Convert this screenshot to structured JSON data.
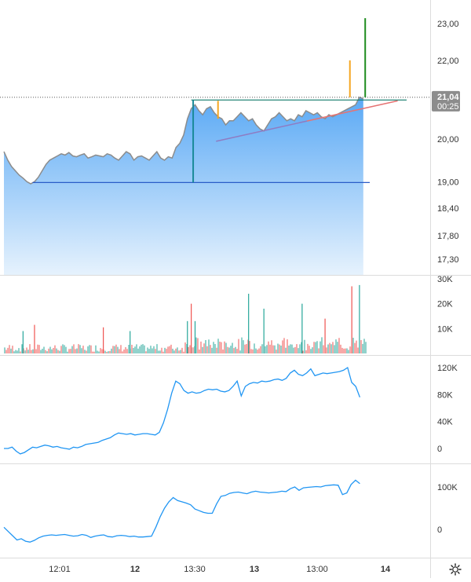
{
  "chart_data": [
    {
      "type": "area",
      "pane": "price",
      "y_ticks": [
        "23,00",
        "22,00",
        "21,00",
        "20,00",
        "19,00",
        "18,40",
        "17,80",
        "17,30"
      ],
      "y_tick_values": [
        23.0,
        22.0,
        21.0,
        20.0,
        19.0,
        18.4,
        17.8,
        17.3
      ],
      "y_scale": "log",
      "last_price_label": "21,04",
      "last_price": 21.04,
      "countdown_label": "00:25",
      "series": [
        {
          "x": [
            0,
            1,
            2,
            3,
            4,
            5,
            6,
            7,
            8,
            9,
            10,
            11,
            12,
            13,
            14,
            15,
            16,
            17,
            18,
            19,
            20,
            21,
            22,
            23,
            24,
            25,
            26,
            27,
            28,
            29,
            30,
            31,
            32,
            33,
            34,
            35,
            36,
            37,
            38,
            39,
            40,
            41,
            42,
            43,
            44,
            45,
            46,
            47,
            48,
            49,
            50,
            51,
            52,
            53,
            54,
            55,
            56,
            57,
            58,
            59,
            60,
            61,
            62,
            63,
            64,
            65,
            66,
            67,
            68,
            69,
            70,
            71,
            72,
            73,
            74,
            75,
            76,
            77,
            78,
            79,
            80,
            81,
            82,
            83,
            84,
            85,
            86,
            87,
            88,
            89,
            90,
            91,
            92,
            93,
            94
          ],
          "values": [
            19.7,
            19.5,
            19.35,
            19.25,
            19.15,
            19.08,
            19.0,
            18.95,
            19.0,
            19.1,
            19.25,
            19.4,
            19.5,
            19.55,
            19.6,
            19.65,
            19.62,
            19.68,
            19.6,
            19.58,
            19.62,
            19.65,
            19.55,
            19.58,
            19.62,
            19.6,
            19.58,
            19.65,
            19.62,
            19.55,
            19.5,
            19.6,
            19.7,
            19.65,
            19.5,
            19.58,
            19.6,
            19.55,
            19.5,
            19.6,
            19.7,
            19.55,
            19.5,
            19.58,
            19.55,
            19.8,
            19.9,
            20.1,
            20.5,
            20.75,
            20.85,
            20.7,
            20.6,
            20.75,
            20.8,
            20.65,
            20.55,
            20.5,
            20.35,
            20.45,
            20.45,
            20.55,
            20.65,
            20.55,
            20.45,
            20.5,
            20.35,
            20.25,
            20.2,
            20.35,
            20.5,
            20.55,
            20.65,
            20.55,
            20.45,
            20.5,
            20.45,
            20.6,
            20.55,
            20.7,
            20.65,
            20.6,
            20.65,
            20.55,
            20.5,
            20.6,
            20.55,
            20.6,
            20.65,
            20.7,
            20.75,
            20.8,
            20.85,
            21.04,
            21.0
          ]
        }
      ],
      "drawings": [
        {
          "kind": "horizontal-line",
          "level": 18.98,
          "color": "#2a5cc8"
        },
        {
          "kind": "horizontal-line",
          "level": 20.97,
          "color": "#0f7a6a"
        },
        {
          "kind": "trend-line",
          "from": [
            55.5,
            19.95
          ],
          "to": [
            103,
            20.95
          ],
          "colors": [
            "#8e7cc3",
            "#e57373"
          ]
        },
        {
          "kind": "vertical-segment",
          "x": 49.5,
          "from": 18.98,
          "to": 20.97,
          "color": "#1a8a99"
        },
        {
          "kind": "vertical-segment",
          "x": 56,
          "from": 20.5,
          "to": 20.95,
          "color": "#f5a623"
        },
        {
          "kind": "vertical-segment",
          "x": 90.5,
          "from": 21.04,
          "to": 22.0,
          "color": "#f5a623"
        },
        {
          "kind": "vertical-segment",
          "x": 94.5,
          "from": 21.04,
          "to": 23.15,
          "color": "#1e8c1e"
        }
      ]
    },
    {
      "type": "bar",
      "pane": "volume",
      "y_ticks": [
        "30K",
        "20K",
        "10K"
      ],
      "y_tick_values": [
        30000,
        20000,
        10000
      ],
      "spikes": [
        {
          "x": 5,
          "value": 9000,
          "color": "up"
        },
        {
          "x": 8,
          "value": 11500,
          "color": "down"
        },
        {
          "x": 26,
          "value": 10500,
          "color": "down"
        },
        {
          "x": 33,
          "value": 9000,
          "color": "up"
        },
        {
          "x": 48,
          "value": 13000,
          "color": "up"
        },
        {
          "x": 49,
          "value": 20000,
          "color": "down"
        },
        {
          "x": 50,
          "value": 13000,
          "color": "up"
        },
        {
          "x": 64,
          "value": 24000,
          "color": "up"
        },
        {
          "x": 68,
          "value": 18000,
          "color": "up"
        },
        {
          "x": 78,
          "value": 20000,
          "color": "up"
        },
        {
          "x": 84,
          "value": 14000,
          "color": "down"
        },
        {
          "x": 91,
          "value": 27000,
          "color": "down"
        },
        {
          "x": 93,
          "value": 27500,
          "color": "up"
        }
      ]
    },
    {
      "type": "line",
      "pane": "indicator-1",
      "y_ticks": [
        "120K",
        "80K",
        "40K",
        "0"
      ],
      "y_tick_values": [
        120000,
        80000,
        40000,
        0
      ],
      "color": "#2196f3",
      "values": [
        0,
        0,
        2000,
        -4000,
        -8000,
        -6000,
        -2000,
        2000,
        1000,
        3000,
        5000,
        4000,
        2000,
        3000,
        1000,
        0,
        -1000,
        2000,
        1000,
        3000,
        6000,
        7000,
        8000,
        9000,
        12000,
        14000,
        16000,
        20000,
        23000,
        22000,
        21000,
        22000,
        20000,
        21000,
        22000,
        22000,
        21000,
        20000,
        24000,
        38000,
        58000,
        82000,
        100000,
        96000,
        86000,
        82000,
        84000,
        82000,
        83000,
        86000,
        88000,
        87000,
        88000,
        85000,
        84000,
        86000,
        92000,
        100000,
        78000,
        92000,
        96000,
        98000,
        97000,
        100000,
        99000,
        100000,
        102000,
        103000,
        101000,
        104000,
        112000,
        116000,
        110000,
        108000,
        112000,
        118000,
        108000,
        110000,
        112000,
        111000,
        112000,
        113000,
        114000,
        116000,
        120000,
        98000,
        92000,
        76000
      ]
    },
    {
      "type": "line",
      "pane": "indicator-2",
      "y_ticks": [
        "100K",
        "0"
      ],
      "y_tick_values": [
        100000,
        0
      ],
      "color": "#2196f3",
      "values": [
        5000,
        -5000,
        -15000,
        -25000,
        -22000,
        -28000,
        -30000,
        -26000,
        -20000,
        -16000,
        -14000,
        -13000,
        -14000,
        -13000,
        -12000,
        -14000,
        -16000,
        -15000,
        -12000,
        -14000,
        -19000,
        -16000,
        -14000,
        -13000,
        -17000,
        -18000,
        -15000,
        -14000,
        -15000,
        -17000,
        -16000,
        -18000,
        -18000,
        -17000,
        -16000,
        5000,
        30000,
        50000,
        65000,
        75000,
        68000,
        65000,
        62000,
        58000,
        48000,
        44000,
        40000,
        38000,
        38000,
        60000,
        78000,
        80000,
        85000,
        87000,
        88000,
        86000,
        84000,
        88000,
        90000,
        88000,
        87000,
        86000,
        87000,
        88000,
        90000,
        89000,
        96000,
        100000,
        92000,
        98000,
        99000,
        100000,
        101000,
        100000,
        103000,
        104000,
        105000,
        104000,
        82000,
        86000,
        106000,
        116000,
        108000
      ]
    }
  ],
  "x_axis": {
    "ticks": [
      "12:01",
      "12",
      "13:30",
      "13",
      "13:00",
      "14"
    ],
    "bold": [
      false,
      true,
      false,
      true,
      false,
      true
    ]
  },
  "icons": {
    "settings": "gear-icon"
  },
  "colors": {
    "area_top": "#5aa9f5",
    "area_bottom": "#e6f2fd",
    "price_line": "#8c8c8c",
    "last_price_badge": "#8c8c8c",
    "volume_up": "#26a69a",
    "volume_down": "#ef5350",
    "indicator_line": "#2196f3"
  }
}
